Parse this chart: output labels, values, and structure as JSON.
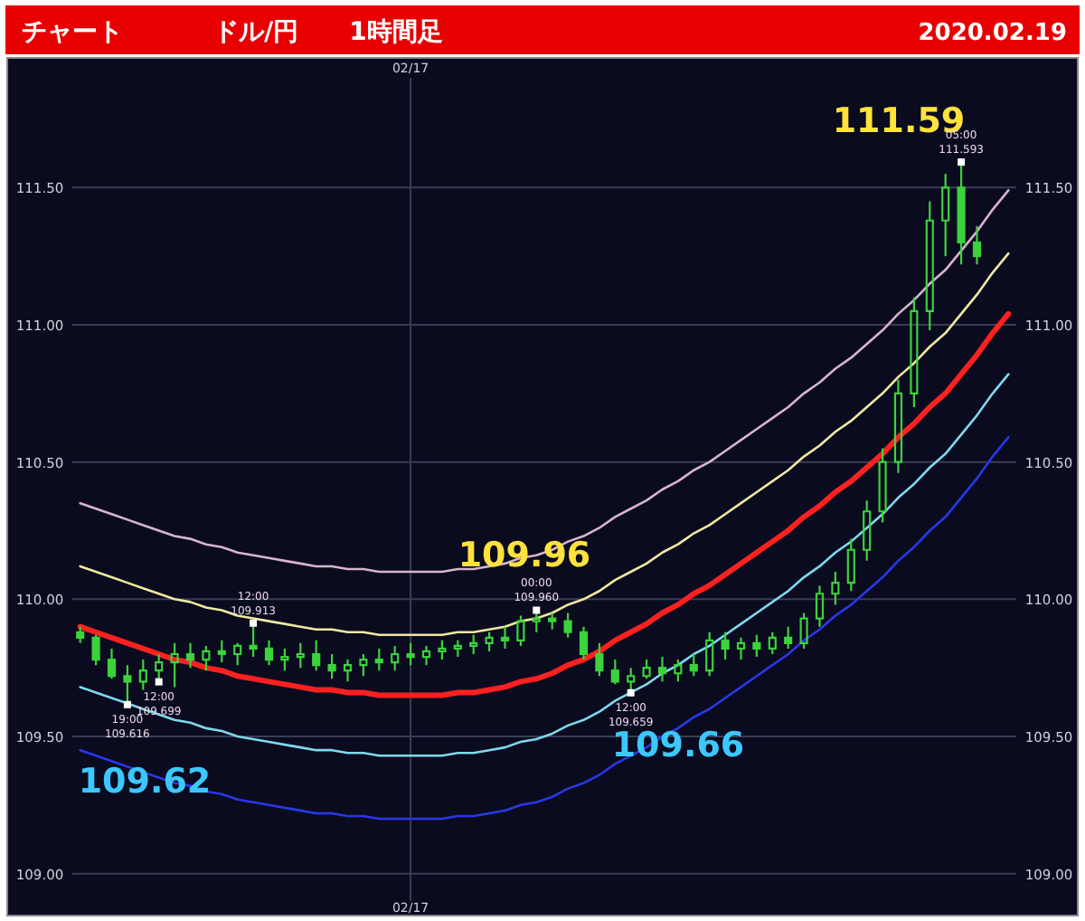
{
  "chart_data": {
    "type": "candlestick",
    "title": "チャート",
    "subtitle": "ドル/円　　1時間足",
    "annotations": [
      "2020.02.19",
      "111.59",
      "109.96",
      "109.62",
      "109.66",
      {
        "text": "19:00\n109.616",
        "y": 109.616
      },
      {
        "text": "12:00\n109.913",
        "y": 109.913
      },
      {
        "text": "12:00\n109.699",
        "y": 109.699
      },
      {
        "text": "00:00\n109.960",
        "y": 109.96
      },
      {
        "text": "12:00\n109.659",
        "y": 109.659
      },
      {
        "text": "05:00\n111.593",
        "y": 111.593
      }
    ],
    "categories": [
      null,
      null,
      null,
      null,
      null,
      null,
      null,
      null,
      null,
      null,
      null,
      null,
      null,
      null,
      null,
      null,
      null,
      null,
      null,
      null,
      null,
      "02/17",
      null,
      null,
      null,
      null,
      null,
      null,
      null,
      null,
      null,
      null,
      null,
      null,
      null,
      null,
      null,
      null,
      null,
      null,
      null,
      null,
      null,
      null,
      null,
      null,
      null,
      null,
      null,
      null,
      null,
      null,
      null,
      null,
      null,
      null,
      null,
      null,
      null,
      null
    ],
    "color": "#3cd23c",
    "ohlc": [
      [
        109.88,
        109.9,
        109.84,
        109.86
      ],
      [
        109.86,
        109.87,
        109.76,
        109.78
      ],
      [
        109.78,
        109.82,
        109.71,
        109.72
      ],
      [
        109.72,
        109.76,
        109.62,
        109.7
      ],
      [
        109.7,
        109.78,
        109.67,
        109.74
      ],
      [
        109.74,
        109.8,
        109.7,
        109.77
      ],
      [
        109.77,
        109.84,
        109.68,
        109.8
      ],
      [
        109.8,
        109.84,
        109.75,
        109.78
      ],
      [
        109.78,
        109.83,
        109.74,
        109.81
      ],
      [
        109.81,
        109.85,
        109.77,
        109.8
      ],
      [
        109.8,
        109.84,
        109.76,
        109.83
      ],
      [
        109.83,
        109.91,
        109.79,
        109.82
      ],
      [
        109.82,
        109.85,
        109.76,
        109.78
      ],
      [
        109.78,
        109.82,
        109.74,
        109.79
      ],
      [
        109.79,
        109.84,
        109.75,
        109.8
      ],
      [
        109.8,
        109.85,
        109.74,
        109.76
      ],
      [
        109.76,
        109.8,
        109.71,
        109.74
      ],
      [
        109.74,
        109.78,
        109.7,
        109.76
      ],
      [
        109.76,
        109.8,
        109.72,
        109.78
      ],
      [
        109.78,
        109.82,
        109.74,
        109.77
      ],
      [
        109.77,
        109.83,
        109.74,
        109.8
      ],
      [
        109.8,
        109.84,
        109.76,
        109.79
      ],
      [
        109.79,
        109.83,
        109.76,
        109.81
      ],
      [
        109.81,
        109.85,
        109.78,
        109.82
      ],
      [
        109.82,
        109.85,
        109.79,
        109.83
      ],
      [
        109.83,
        109.87,
        109.8,
        109.84
      ],
      [
        109.84,
        109.88,
        109.81,
        109.86
      ],
      [
        109.86,
        109.9,
        109.82,
        109.85
      ],
      [
        109.85,
        109.94,
        109.83,
        109.92
      ],
      [
        109.92,
        109.96,
        109.88,
        109.93
      ],
      [
        109.93,
        109.95,
        109.89,
        109.92
      ],
      [
        109.92,
        109.95,
        109.86,
        109.88
      ],
      [
        109.88,
        109.9,
        109.78,
        109.8
      ],
      [
        109.8,
        109.84,
        109.72,
        109.74
      ],
      [
        109.74,
        109.78,
        109.69,
        109.7
      ],
      [
        109.7,
        109.75,
        109.66,
        109.72
      ],
      [
        109.72,
        109.78,
        109.71,
        109.75
      ],
      [
        109.75,
        109.79,
        109.7,
        109.73
      ],
      [
        109.73,
        109.78,
        109.7,
        109.76
      ],
      [
        109.76,
        109.8,
        109.72,
        109.74
      ],
      [
        109.74,
        109.88,
        109.72,
        109.85
      ],
      [
        109.85,
        109.88,
        109.78,
        109.82
      ],
      [
        109.82,
        109.86,
        109.78,
        109.84
      ],
      [
        109.84,
        109.87,
        109.79,
        109.82
      ],
      [
        109.82,
        109.88,
        109.8,
        109.86
      ],
      [
        109.86,
        109.9,
        109.82,
        109.84
      ],
      [
        109.84,
        109.95,
        109.82,
        109.93
      ],
      [
        109.93,
        110.05,
        109.9,
        110.02
      ],
      [
        110.02,
        110.1,
        109.98,
        110.06
      ],
      [
        110.06,
        110.22,
        110.03,
        110.18
      ],
      [
        110.18,
        110.36,
        110.14,
        110.32
      ],
      [
        110.32,
        110.55,
        110.28,
        110.5
      ],
      [
        110.5,
        110.8,
        110.46,
        110.75
      ],
      [
        110.75,
        111.1,
        110.7,
        111.05
      ],
      [
        111.05,
        111.45,
        110.98,
        111.38
      ],
      [
        111.38,
        111.55,
        111.25,
        111.5
      ],
      [
        111.5,
        111.59,
        111.22,
        111.3
      ],
      [
        111.3,
        111.36,
        111.22,
        111.25
      ],
      null,
      null
    ],
    "series": [
      {
        "type": "line",
        "color": "#d8b4cc",
        "values": [
          110.35,
          110.33,
          110.31,
          110.29,
          110.27,
          110.25,
          110.23,
          110.22,
          110.2,
          110.19,
          110.17,
          110.16,
          110.15,
          110.14,
          110.13,
          110.12,
          110.12,
          110.11,
          110.11,
          110.1,
          110.1,
          110.1,
          110.1,
          110.1,
          110.11,
          110.11,
          110.12,
          110.13,
          110.15,
          110.16,
          110.18,
          110.21,
          110.23,
          110.26,
          110.3,
          110.33,
          110.36,
          110.4,
          110.43,
          110.47,
          110.5,
          110.54,
          110.58,
          110.62,
          110.66,
          110.7,
          110.75,
          110.79,
          110.84,
          110.88,
          110.93,
          110.98,
          111.04,
          111.09,
          111.15,
          111.2,
          111.27,
          111.34,
          111.42,
          111.49
        ]
      },
      {
        "type": "line",
        "color": "#f0e8a0",
        "values": [
          110.12,
          110.1,
          110.08,
          110.06,
          110.04,
          110.02,
          110.0,
          109.99,
          109.97,
          109.96,
          109.94,
          109.93,
          109.92,
          109.91,
          109.9,
          109.89,
          109.89,
          109.88,
          109.88,
          109.87,
          109.87,
          109.87,
          109.87,
          109.87,
          109.88,
          109.88,
          109.89,
          109.9,
          109.92,
          109.93,
          109.95,
          109.98,
          110.0,
          110.03,
          110.07,
          110.1,
          110.13,
          110.17,
          110.2,
          110.24,
          110.27,
          110.31,
          110.35,
          110.39,
          110.43,
          110.47,
          110.52,
          110.56,
          110.61,
          110.65,
          110.7,
          110.75,
          110.81,
          110.86,
          110.92,
          110.97,
          111.04,
          111.11,
          111.19,
          111.26
        ]
      },
      {
        "type": "line",
        "color": "#ff2020",
        "values": [
          109.9,
          109.88,
          109.86,
          109.84,
          109.82,
          109.8,
          109.78,
          109.77,
          109.75,
          109.74,
          109.72,
          109.71,
          109.7,
          109.69,
          109.68,
          109.67,
          109.67,
          109.66,
          109.66,
          109.65,
          109.65,
          109.65,
          109.65,
          109.65,
          109.66,
          109.66,
          109.67,
          109.68,
          109.7,
          109.71,
          109.73,
          109.76,
          109.78,
          109.81,
          109.85,
          109.88,
          109.91,
          109.95,
          109.98,
          110.02,
          110.05,
          110.09,
          110.13,
          110.17,
          110.21,
          110.25,
          110.3,
          110.34,
          110.39,
          110.43,
          110.48,
          110.53,
          110.59,
          110.64,
          110.7,
          110.75,
          110.82,
          110.89,
          110.97,
          111.04
        ]
      },
      {
        "type": "line",
        "color": "#80d8ec",
        "values": [
          109.68,
          109.66,
          109.64,
          109.62,
          109.6,
          109.58,
          109.56,
          109.55,
          109.53,
          109.52,
          109.5,
          109.49,
          109.48,
          109.47,
          109.46,
          109.45,
          109.45,
          109.44,
          109.44,
          109.43,
          109.43,
          109.43,
          109.43,
          109.43,
          109.44,
          109.44,
          109.45,
          109.46,
          109.48,
          109.49,
          109.51,
          109.54,
          109.56,
          109.59,
          109.63,
          109.66,
          109.69,
          109.73,
          109.76,
          109.8,
          109.83,
          109.87,
          109.91,
          109.95,
          109.99,
          110.03,
          110.08,
          110.12,
          110.17,
          110.21,
          110.26,
          110.31,
          110.37,
          110.42,
          110.48,
          110.53,
          110.6,
          110.67,
          110.75,
          110.82
        ]
      },
      {
        "type": "line",
        "color": "#2838e8",
        "values": [
          109.45,
          109.43,
          109.41,
          109.39,
          109.37,
          109.35,
          109.33,
          109.32,
          109.3,
          109.29,
          109.27,
          109.26,
          109.25,
          109.24,
          109.23,
          109.22,
          109.22,
          109.21,
          109.21,
          109.2,
          109.2,
          109.2,
          109.2,
          109.2,
          109.21,
          109.21,
          109.22,
          109.23,
          109.25,
          109.26,
          109.28,
          109.31,
          109.33,
          109.36,
          109.4,
          109.43,
          109.46,
          109.5,
          109.53,
          109.57,
          109.6,
          109.64,
          109.68,
          109.72,
          109.76,
          109.8,
          109.85,
          109.89,
          109.94,
          109.98,
          110.03,
          110.08,
          110.14,
          110.19,
          110.25,
          110.3,
          110.37,
          110.44,
          110.52,
          110.59
        ]
      }
    ],
    "ylim": [
      108.9,
      111.9
    ],
    "yticks": [
      {
        "value": 109,
        "label": "109.00"
      },
      {
        "value": 109.5,
        "label": "109.50"
      },
      {
        "value": 110,
        "label": "110.00"
      },
      {
        "value": 110.5,
        "label": "110.50"
      },
      {
        "value": 111,
        "label": "111.00"
      },
      {
        "value": 111.5,
        "label": "111.50"
      }
    ],
    "y2lim": [
      108.9,
      111.9
    ],
    "y2ticks": [
      {
        "value": 109,
        "label": "109.00"
      },
      {
        "value": 109.5,
        "label": "109.50"
      },
      {
        "value": 110,
        "label": "110.00"
      },
      {
        "value": 110.5,
        "label": "110.50"
      },
      {
        "value": 111,
        "label": "111.00"
      },
      {
        "value": 111.5,
        "label": "111.50"
      }
    ],
    "grid": true
  }
}
